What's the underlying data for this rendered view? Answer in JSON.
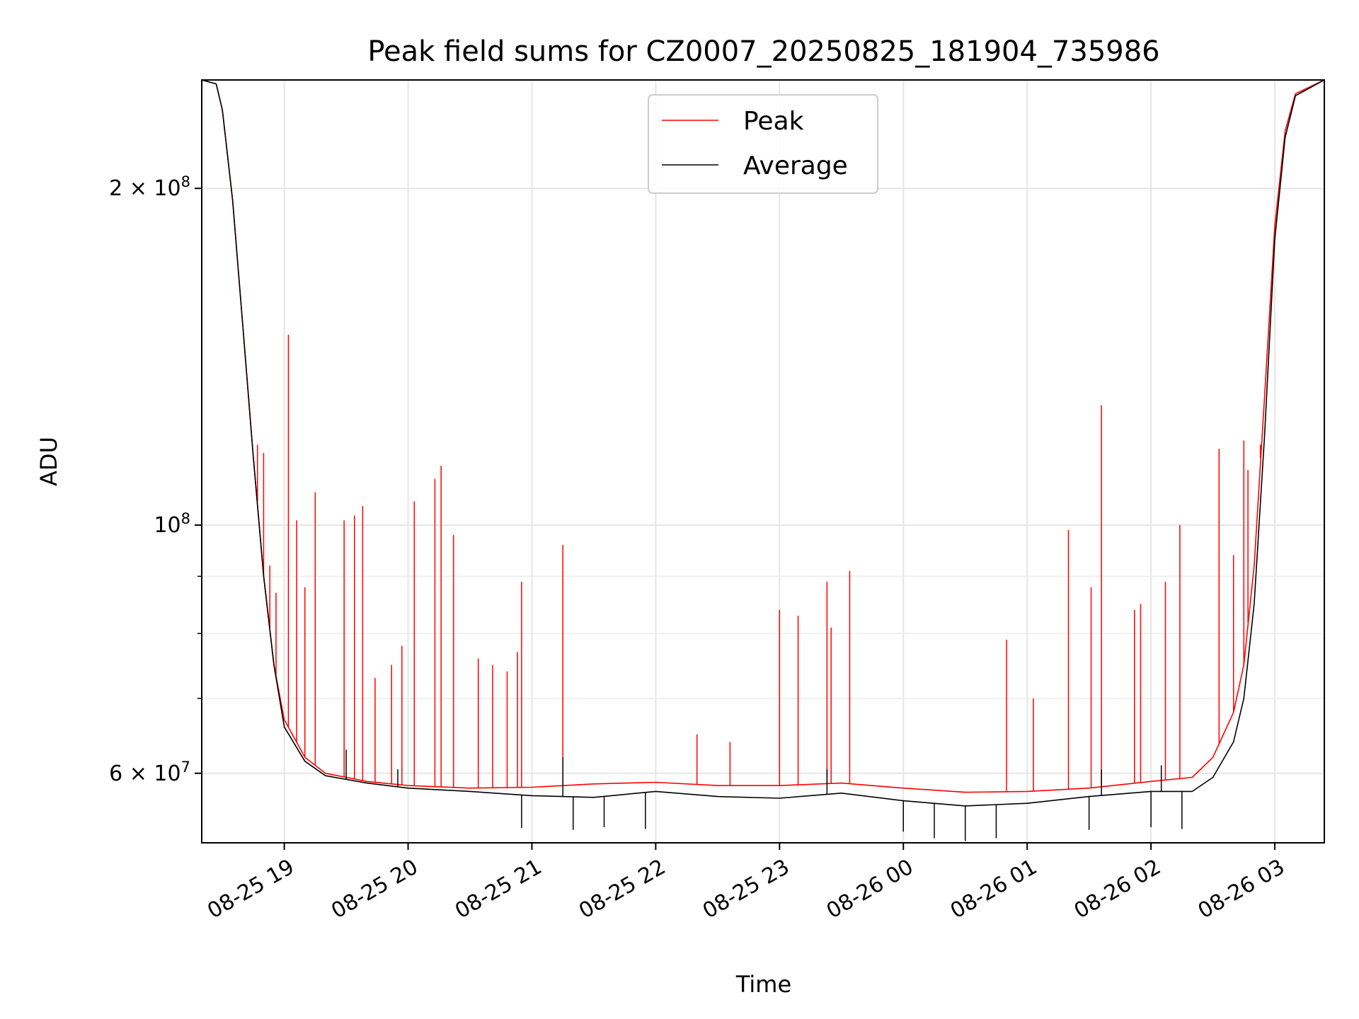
{
  "chart_data": {
    "type": "line",
    "title": "Peak field sums for CZ0007_20250825_181904_735986",
    "xlabel": "Time",
    "ylabel": "ADU",
    "x_axis": "time",
    "xlim": [
      "2025-08-25 18:20",
      "2025-08-26 03:24"
    ],
    "y_scale": "log",
    "ylim": [
      52000000,
      250000000
    ],
    "grid": true,
    "legend_position": "upper center",
    "x_ticks": [
      {
        "t": "2025-08-25 19:00",
        "label": "08-25 19"
      },
      {
        "t": "2025-08-25 20:00",
        "label": "08-25 20"
      },
      {
        "t": "2025-08-25 21:00",
        "label": "08-25 21"
      },
      {
        "t": "2025-08-25 22:00",
        "label": "08-25 22"
      },
      {
        "t": "2025-08-25 23:00",
        "label": "08-25 23"
      },
      {
        "t": "2025-08-26 00:00",
        "label": "08-26 00"
      },
      {
        "t": "2025-08-26 01:00",
        "label": "08-26 01"
      },
      {
        "t": "2025-08-26 02:00",
        "label": "08-26 02"
      },
      {
        "t": "2025-08-26 03:00",
        "label": "08-26 03"
      }
    ],
    "y_major_ticks": [
      {
        "value": 60000000,
        "mantissa": "6",
        "exp": "7"
      },
      {
        "value": 100000000,
        "mantissa": "",
        "exp": "8"
      },
      {
        "value": 200000000,
        "mantissa": "2",
        "exp": "8"
      }
    ],
    "y_minor_ticks": [
      70000000,
      80000000,
      90000000
    ],
    "series": [
      {
        "name": "Peak",
        "color": "#ff0000",
        "baseline": [
          [
            "2025-08-25 18:20",
            250000000
          ],
          [
            "2025-08-25 18:27",
            248000000
          ],
          [
            "2025-08-25 18:30",
            235000000
          ],
          [
            "2025-08-25 18:35",
            195000000
          ],
          [
            "2025-08-25 18:40",
            150000000
          ],
          [
            "2025-08-25 18:45",
            115000000
          ],
          [
            "2025-08-25 18:50",
            90000000
          ],
          [
            "2025-08-25 18:55",
            75000000
          ],
          [
            "2025-08-25 19:00",
            67000000
          ],
          [
            "2025-08-25 19:10",
            62000000
          ],
          [
            "2025-08-25 19:20",
            60000000
          ],
          [
            "2025-08-25 19:40",
            59000000
          ],
          [
            "2025-08-25 20:00",
            58500000
          ],
          [
            "2025-08-25 20:30",
            58200000
          ],
          [
            "2025-08-25 21:00",
            58300000
          ],
          [
            "2025-08-25 21:30",
            58700000
          ],
          [
            "2025-08-25 22:00",
            58900000
          ],
          [
            "2025-08-25 22:30",
            58500000
          ],
          [
            "2025-08-25 23:00",
            58500000
          ],
          [
            "2025-08-25 23:30",
            58800000
          ],
          [
            "2025-08-26 00:00",
            58200000
          ],
          [
            "2025-08-26 00:30",
            57700000
          ],
          [
            "2025-08-26 01:00",
            57800000
          ],
          [
            "2025-08-26 01:30",
            58200000
          ],
          [
            "2025-08-26 02:00",
            59000000
          ],
          [
            "2025-08-26 02:20",
            59500000
          ],
          [
            "2025-08-26 02:30",
            62000000
          ],
          [
            "2025-08-26 02:40",
            68000000
          ],
          [
            "2025-08-26 02:45",
            75000000
          ],
          [
            "2025-08-26 02:50",
            92000000
          ],
          [
            "2025-08-26 02:55",
            130000000
          ],
          [
            "2025-08-26 03:00",
            185000000
          ],
          [
            "2025-08-26 03:05",
            225000000
          ],
          [
            "2025-08-26 03:10",
            243000000
          ],
          [
            "2025-08-26 03:24",
            250000000
          ]
        ],
        "spikes": [
          [
            "2025-08-25 18:47",
            118000000
          ],
          [
            "2025-08-25 18:50",
            116000000
          ],
          [
            "2025-08-25 18:53",
            92000000
          ],
          [
            "2025-08-25 18:56",
            87000000
          ],
          [
            "2025-08-25 19:02",
            148000000
          ],
          [
            "2025-08-25 19:06",
            101000000
          ],
          [
            "2025-08-25 19:10",
            88000000
          ],
          [
            "2025-08-25 19:15",
            107000000
          ],
          [
            "2025-08-25 19:29",
            101000000
          ],
          [
            "2025-08-25 19:34",
            102000000
          ],
          [
            "2025-08-25 19:38",
            104000000
          ],
          [
            "2025-08-25 19:44",
            73000000
          ],
          [
            "2025-08-25 19:52",
            75000000
          ],
          [
            "2025-08-25 19:57",
            78000000
          ],
          [
            "2025-08-25 20:03",
            105000000
          ],
          [
            "2025-08-25 20:13",
            110000000
          ],
          [
            "2025-08-25 20:16",
            113000000
          ],
          [
            "2025-08-25 20:22",
            98000000
          ],
          [
            "2025-08-25 20:34",
            76000000
          ],
          [
            "2025-08-25 20:41",
            75000000
          ],
          [
            "2025-08-25 20:48",
            74000000
          ],
          [
            "2025-08-25 20:53",
            77000000
          ],
          [
            "2025-08-25 20:55",
            89000000
          ],
          [
            "2025-08-25 21:15",
            96000000
          ],
          [
            "2025-08-25 22:20",
            65000000
          ],
          [
            "2025-08-25 22:36",
            64000000
          ],
          [
            "2025-08-25 23:00",
            84000000
          ],
          [
            "2025-08-25 23:09",
            83000000
          ],
          [
            "2025-08-25 23:23",
            89000000
          ],
          [
            "2025-08-25 23:25",
            81000000
          ],
          [
            "2025-08-25 23:34",
            91000000
          ],
          [
            "2025-08-26 00:50",
            79000000
          ],
          [
            "2025-08-26 01:03",
            70000000
          ],
          [
            "2025-08-26 01:20",
            99000000
          ],
          [
            "2025-08-26 01:31",
            88000000
          ],
          [
            "2025-08-26 01:36",
            128000000
          ],
          [
            "2025-08-26 01:52",
            84000000
          ],
          [
            "2025-08-26 01:55",
            85000000
          ],
          [
            "2025-08-26 02:07",
            89000000
          ],
          [
            "2025-08-26 02:14",
            100000000
          ],
          [
            "2025-08-26 02:33",
            117000000
          ],
          [
            "2025-08-26 02:40",
            94000000
          ],
          [
            "2025-08-26 02:45",
            119000000
          ],
          [
            "2025-08-26 02:47",
            112000000
          ],
          [
            "2025-08-26 02:53",
            118000000
          ]
        ]
      },
      {
        "name": "Average",
        "color": "#000000",
        "baseline": [
          [
            "2025-08-25 18:20",
            250000000
          ],
          [
            "2025-08-25 18:27",
            248000000
          ],
          [
            "2025-08-25 18:30",
            235000000
          ],
          [
            "2025-08-25 18:35",
            195000000
          ],
          [
            "2025-08-25 18:40",
            150000000
          ],
          [
            "2025-08-25 18:45",
            115000000
          ],
          [
            "2025-08-25 18:50",
            90000000
          ],
          [
            "2025-08-25 18:55",
            75000000
          ],
          [
            "2025-08-25 19:00",
            66000000
          ],
          [
            "2025-08-25 19:10",
            61500000
          ],
          [
            "2025-08-25 19:20",
            59700000
          ],
          [
            "2025-08-25 19:40",
            58800000
          ],
          [
            "2025-08-25 20:00",
            58200000
          ],
          [
            "2025-08-25 20:30",
            57800000
          ],
          [
            "2025-08-25 21:00",
            57300000
          ],
          [
            "2025-08-25 21:30",
            57100000
          ],
          [
            "2025-08-25 22:00",
            57800000
          ],
          [
            "2025-08-25 22:30",
            57200000
          ],
          [
            "2025-08-25 23:00",
            57000000
          ],
          [
            "2025-08-25 23:30",
            57600000
          ],
          [
            "2025-08-26 00:00",
            56700000
          ],
          [
            "2025-08-26 00:30",
            56100000
          ],
          [
            "2025-08-26 01:00",
            56400000
          ],
          [
            "2025-08-26 01:30",
            57200000
          ],
          [
            "2025-08-26 02:00",
            57800000
          ],
          [
            "2025-08-26 02:20",
            57800000
          ],
          [
            "2025-08-26 02:30",
            59500000
          ],
          [
            "2025-08-26 02:40",
            64000000
          ],
          [
            "2025-08-26 02:45",
            70000000
          ],
          [
            "2025-08-26 02:50",
            85000000
          ],
          [
            "2025-08-26 02:55",
            120000000
          ],
          [
            "2025-08-26 03:00",
            180000000
          ],
          [
            "2025-08-26 03:05",
            222000000
          ],
          [
            "2025-08-26 03:10",
            242000000
          ],
          [
            "2025-08-26 03:24",
            250000000
          ]
        ],
        "spikes": [
          [
            "2025-08-25 19:30",
            63000000
          ],
          [
            "2025-08-25 19:55",
            60500000
          ],
          [
            "2025-08-25 21:15",
            62000000
          ],
          [
            "2025-08-25 23:23",
            60500000
          ],
          [
            "2025-08-26 01:36",
            60500000
          ],
          [
            "2025-08-26 02:05",
            61000000
          ]
        ],
        "dips": [
          [
            "2025-08-25 20:55",
            53600000
          ],
          [
            "2025-08-25 21:20",
            53400000
          ],
          [
            "2025-08-25 21:35",
            53700000
          ],
          [
            "2025-08-25 21:55",
            53500000
          ],
          [
            "2025-08-26 00:00",
            53200000
          ],
          [
            "2025-08-26 00:15",
            52500000
          ],
          [
            "2025-08-26 00:30",
            52200000
          ],
          [
            "2025-08-26 00:45",
            52500000
          ],
          [
            "2025-08-26 01:30",
            53400000
          ],
          [
            "2025-08-26 02:00",
            53700000
          ],
          [
            "2025-08-26 02:15",
            53500000
          ]
        ]
      }
    ]
  }
}
